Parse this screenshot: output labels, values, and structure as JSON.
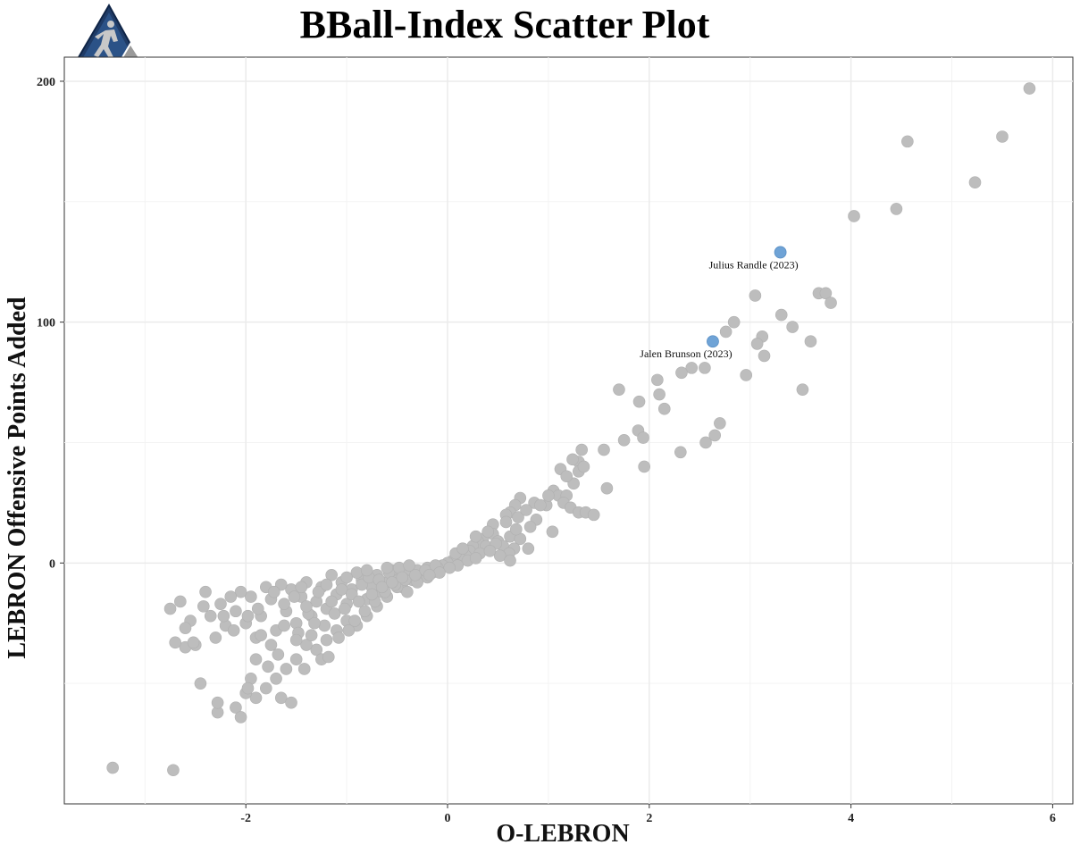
{
  "logo": {
    "name": "bball-index-logo"
  },
  "chart_data": {
    "type": "scatter",
    "title": "BBall-Index Scatter Plot",
    "xlabel": "O-LEBRON",
    "ylabel": "LEBRON Offensive Points Added",
    "xlim": [
      -3.8,
      6.2
    ],
    "ylim": [
      -100,
      210
    ],
    "x_ticks": [
      -2,
      0,
      2,
      4,
      6
    ],
    "y_ticks": [
      0,
      100,
      200
    ],
    "x_tick_labels": [
      "-2",
      "0",
      "2",
      "4",
      "6"
    ],
    "y_tick_labels": [
      "0",
      "100",
      "200"
    ],
    "grid": true,
    "colors": {
      "points": "#bdbdbd",
      "highlight": "#6fa3d6",
      "grid": "#ebebeb",
      "frame": "#333333"
    },
    "highlighted": [
      {
        "label": "Julius Randle (2023)",
        "x": 3.3,
        "y": 129
      },
      {
        "label": "Jalen Brunson (2023)",
        "x": 2.63,
        "y": 92
      }
    ],
    "points": [
      [
        5.77,
        197
      ],
      [
        4.56,
        175
      ],
      [
        5.5,
        177
      ],
      [
        5.23,
        158
      ],
      [
        4.03,
        144
      ],
      [
        4.45,
        147
      ],
      [
        3.05,
        111
      ],
      [
        3.68,
        112
      ],
      [
        3.75,
        112
      ],
      [
        3.8,
        108
      ],
      [
        2.84,
        100
      ],
      [
        3.31,
        103
      ],
      [
        2.76,
        96
      ],
      [
        3.12,
        94
      ],
      [
        3.07,
        91
      ],
      [
        3.42,
        98
      ],
      [
        3.6,
        92
      ],
      [
        3.14,
        86
      ],
      [
        2.42,
        81
      ],
      [
        2.55,
        81
      ],
      [
        2.32,
        79
      ],
      [
        2.96,
        78
      ],
      [
        3.52,
        72
      ],
      [
        1.7,
        72
      ],
      [
        1.9,
        67
      ],
      [
        2.08,
        76
      ],
      [
        2.1,
        70
      ],
      [
        2.15,
        64
      ],
      [
        2.7,
        58
      ],
      [
        2.65,
        53
      ],
      [
        2.56,
        50
      ],
      [
        2.31,
        46
      ],
      [
        1.89,
        55
      ],
      [
        1.94,
        52
      ],
      [
        1.75,
        51
      ],
      [
        1.95,
        40
      ],
      [
        1.55,
        47
      ],
      [
        1.33,
        47
      ],
      [
        1.3,
        42
      ],
      [
        1.24,
        43
      ],
      [
        1.12,
        39
      ],
      [
        1.3,
        38
      ],
      [
        1.25,
        33
      ],
      [
        1.58,
        31
      ],
      [
        1.05,
        30
      ],
      [
        1.1,
        28
      ],
      [
        1.18,
        28
      ],
      [
        1.15,
        25
      ],
      [
        1.22,
        23
      ],
      [
        0.98,
        24
      ],
      [
        1.3,
        21
      ],
      [
        1.37,
        21
      ],
      [
        0.86,
        25
      ],
      [
        0.72,
        27
      ],
      [
        0.67,
        24
      ],
      [
        0.62,
        21
      ],
      [
        0.58,
        20
      ],
      [
        0.7,
        19
      ],
      [
        0.88,
        18
      ],
      [
        0.45,
        16
      ],
      [
        1.04,
        13
      ],
      [
        0.62,
        11
      ],
      [
        0.45,
        12
      ],
      [
        0.72,
        10
      ],
      [
        0.5,
        9
      ],
      [
        0.55,
        7
      ],
      [
        0.66,
        6
      ],
      [
        0.8,
        6
      ],
      [
        0.61,
        4
      ],
      [
        0.52,
        3
      ],
      [
        0.35,
        10
      ],
      [
        0.3,
        9
      ],
      [
        0.25,
        7
      ],
      [
        0.22,
        5
      ],
      [
        0.18,
        3
      ],
      [
        0.12,
        2
      ],
      [
        0.05,
        1
      ],
      [
        0,
        0
      ],
      [
        -0.05,
        -1
      ],
      [
        -0.1,
        -2
      ],
      [
        -0.15,
        -4
      ],
      [
        -0.2,
        -2
      ],
      [
        -0.25,
        -5
      ],
      [
        -0.3,
        -3
      ],
      [
        -0.35,
        -7
      ],
      [
        -0.4,
        -4
      ],
      [
        -0.45,
        -10
      ],
      [
        -0.5,
        -6
      ],
      [
        -0.55,
        -3
      ],
      [
        -0.6,
        -8
      ],
      [
        -0.65,
        -12
      ],
      [
        -0.7,
        -5
      ],
      [
        -0.75,
        -10
      ],
      [
        -0.8,
        -15
      ],
      [
        -0.85,
        -7
      ],
      [
        -0.9,
        -4
      ],
      [
        -0.95,
        -11
      ],
      [
        -1.0,
        -17
      ],
      [
        -1.05,
        -8
      ],
      [
        -1.1,
        -13
      ],
      [
        -1.15,
        -5
      ],
      [
        -1.2,
        -19
      ],
      [
        -1.25,
        -10
      ],
      [
        -1.3,
        -16
      ],
      [
        -1.35,
        -22
      ],
      [
        -1.4,
        -8
      ],
      [
        -1.45,
        -14
      ],
      [
        -1.5,
        -25
      ],
      [
        -1.55,
        -11
      ],
      [
        -1.6,
        -20
      ],
      [
        -1.65,
        -9
      ],
      [
        -1.7,
        -28
      ],
      [
        -1.75,
        -15
      ],
      [
        -1.8,
        -10
      ],
      [
        -1.85,
        -22
      ],
      [
        -1.9,
        -31
      ],
      [
        -1.95,
        -14
      ],
      [
        -2.0,
        -25
      ],
      [
        -2.05,
        -12
      ],
      [
        -2.1,
        -20
      ],
      [
        -2.2,
        -26
      ],
      [
        -2.25,
        -17
      ],
      [
        -2.3,
        -31
      ],
      [
        -2.35,
        -22
      ],
      [
        -2.4,
        -12
      ],
      [
        -2.5,
        -34
      ],
      [
        -2.55,
        -24
      ],
      [
        -2.6,
        -35
      ],
      [
        -2.65,
        -16
      ],
      [
        -2.7,
        -33
      ],
      [
        -2.75,
        -19
      ],
      [
        -0.2,
        -6
      ],
      [
        -0.3,
        -8
      ],
      [
        -0.4,
        -12
      ],
      [
        -0.5,
        -10
      ],
      [
        -0.6,
        -14
      ],
      [
        -0.7,
        -18
      ],
      [
        -0.8,
        -22
      ],
      [
        -0.9,
        -26
      ],
      [
        -1.0,
        -24
      ],
      [
        -1.1,
        -28
      ],
      [
        -1.2,
        -32
      ],
      [
        -1.3,
        -36
      ],
      [
        -1.4,
        -34
      ],
      [
        -1.5,
        -40
      ],
      [
        -1.6,
        -44
      ],
      [
        -1.7,
        -48
      ],
      [
        -1.8,
        -52
      ],
      [
        -1.9,
        -56
      ],
      [
        -2.0,
        -54
      ],
      [
        -2.1,
        -60
      ],
      [
        -1.95,
        -48
      ],
      [
        -2.05,
        -64
      ],
      [
        -1.65,
        -56
      ],
      [
        -1.55,
        -58
      ],
      [
        -1.78,
        -43
      ],
      [
        -1.42,
        -44
      ],
      [
        -1.25,
        -40
      ],
      [
        -1.18,
        -39
      ],
      [
        -1.35,
        -30
      ],
      [
        -1.22,
        -26
      ],
      [
        -1.08,
        -31
      ],
      [
        -0.98,
        -28
      ],
      [
        -0.92,
        -24
      ],
      [
        -0.82,
        -20
      ],
      [
        -0.72,
        -16
      ],
      [
        -0.62,
        -12
      ],
      [
        -0.52,
        -9
      ],
      [
        -0.42,
        -7
      ],
      [
        -0.32,
        -5
      ],
      [
        -0.22,
        -3
      ],
      [
        -0.12,
        -1
      ],
      [
        -2.28,
        -62
      ],
      [
        -2.45,
        -50
      ],
      [
        -2.28,
        -58
      ],
      [
        -3.32,
        -85
      ],
      [
        -2.72,
        -86
      ],
      [
        -2.52,
        -33
      ],
      [
        -2.22,
        -22
      ],
      [
        -2.12,
        -28
      ],
      [
        -1.98,
        -22
      ],
      [
        -1.88,
        -19
      ],
      [
        -1.72,
        -12
      ],
      [
        -1.62,
        -17
      ],
      [
        -1.52,
        -14
      ],
      [
        -1.45,
        -10
      ],
      [
        -1.38,
        -21
      ],
      [
        -1.28,
        -12
      ],
      [
        -1.15,
        -16
      ],
      [
        -1.05,
        -11
      ],
      [
        -0.95,
        -13
      ],
      [
        -0.85,
        -9
      ],
      [
        -0.78,
        -6
      ],
      [
        -0.68,
        -7
      ],
      [
        -0.58,
        -4
      ],
      [
        -0.48,
        -2
      ],
      [
        -0.38,
        -1
      ],
      [
        0.08,
        4
      ],
      [
        0.15,
        6
      ],
      [
        0.28,
        11
      ],
      [
        0.4,
        13
      ],
      [
        0.38,
        7
      ],
      [
        0.48,
        8
      ],
      [
        0.2,
        1
      ],
      [
        0.32,
        4
      ],
      [
        0.1,
        -1
      ],
      [
        0.02,
        -2
      ],
      [
        -0.08,
        -4
      ],
      [
        -0.18,
        -5
      ],
      [
        -1.85,
        -30
      ],
      [
        -1.75,
        -34
      ],
      [
        -1.62,
        -26
      ],
      [
        -1.48,
        -29
      ],
      [
        -1.32,
        -25
      ],
      [
        -1.12,
        -21
      ],
      [
        -1.02,
        -19
      ],
      [
        -0.88,
        -16
      ],
      [
        -0.75,
        -13
      ],
      [
        -0.65,
        -10
      ],
      [
        -0.55,
        -8
      ],
      [
        -0.45,
        -6
      ],
      [
        -1.9,
        -40
      ],
      [
        -1.98,
        -52
      ],
      [
        -2.15,
        -14
      ],
      [
        -2.42,
        -18
      ],
      [
        -2.6,
        -27
      ],
      [
        -1.68,
        -38
      ],
      [
        -1.5,
        -32
      ],
      [
        -1.4,
        -18
      ],
      [
        -1.2,
        -9
      ],
      [
        -1.0,
        -6
      ],
      [
        -0.8,
        -3
      ],
      [
        -0.6,
        -2
      ],
      [
        1.45,
        20
      ],
      [
        1.0,
        28
      ],
      [
        0.92,
        24
      ],
      [
        0.78,
        22
      ],
      [
        0.58,
        17
      ],
      [
        0.68,
        14
      ],
      [
        0.82,
        15
      ],
      [
        0.42,
        5
      ],
      [
        0.62,
        1
      ],
      [
        0.28,
        2
      ],
      [
        1.35,
        40
      ],
      [
        1.18,
        36
      ]
    ]
  }
}
